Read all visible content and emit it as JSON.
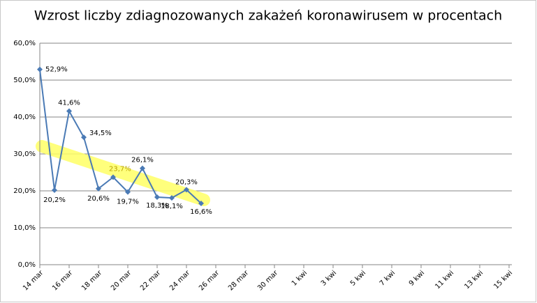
{
  "chart_data": {
    "type": "line",
    "title": "Wzrost liczby zdiagnozowanych zakażeń koronawirusem w procentach",
    "categories": [
      "14 mar",
      null,
      "16 mar",
      null,
      "18 mar",
      null,
      "20 mar",
      null,
      "22 mar",
      null,
      "24 mar",
      null,
      "26 mar",
      null,
      "28 mar",
      null,
      "30 mar",
      null,
      "1 kwi",
      null,
      "3 kwi",
      null,
      "5 kwi",
      null,
      "7 kwi",
      null,
      "9 kwi",
      null,
      "11 kwi",
      null,
      "13 kwi",
      null,
      "15 kwi"
    ],
    "series": [
      {
        "color": "#4a7ab5",
        "values": [
          52.9,
          20.2,
          41.6,
          34.5,
          20.6,
          23.7,
          19.7,
          26.1,
          18.3,
          18.1,
          20.3,
          16.6,
          null,
          null,
          null,
          null,
          null,
          null,
          null,
          null,
          null,
          null,
          null,
          null,
          null,
          null,
          null,
          null,
          null,
          null,
          null,
          null,
          null
        ],
        "value_labels": [
          "52,9%",
          "20,2%",
          "41,6%",
          "34,5%",
          "20,6%",
          "23,7%",
          "19,7%",
          "26,1%",
          "18,3%",
          "18,1%",
          "20,3%",
          "16,6%",
          null,
          null,
          null,
          null,
          null,
          null,
          null,
          null,
          null,
          null,
          null,
          null,
          null,
          null,
          null,
          null,
          null,
          null,
          null,
          null,
          null
        ]
      }
    ],
    "ylim": [
      0,
      60
    ],
    "yticks": [
      {
        "value": 0,
        "label": "0,0%"
      },
      {
        "value": 10,
        "label": "10,0%"
      },
      {
        "value": 20,
        "label": "20,0%"
      },
      {
        "value": 30,
        "label": "30,0%"
      },
      {
        "value": 40,
        "label": "40,0%"
      },
      {
        "value": 50,
        "label": "50,0%"
      },
      {
        "value": 60,
        "label": "60,0%"
      }
    ],
    "grid": true
  }
}
